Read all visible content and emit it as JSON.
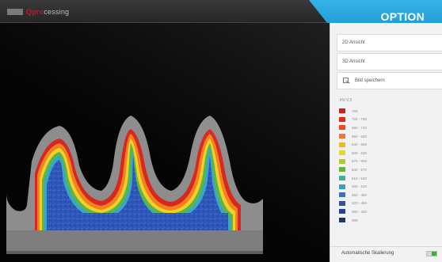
{
  "app": {
    "logo_prefix": "Q",
    "logo_brand": "pro",
    "logo_suffix": "cessing"
  },
  "badge": {
    "label": "OPTION"
  },
  "panel": {
    "view_2d": "2D Ansicht",
    "view_3d": "3D Ansicht",
    "edit_label": "Bild speichern",
    "legend_title": "HV 0.5",
    "legend": [
      {
        "label": "750",
        "color": "#d71d1d"
      },
      {
        "label": "720 - 750",
        "color": "#e02a22"
      },
      {
        "label": "690 - 720",
        "color": "#ea4b25"
      },
      {
        "label": "660 - 690",
        "color": "#f07a24"
      },
      {
        "label": "630 - 660",
        "color": "#f4b624"
      },
      {
        "label": "600 - 630",
        "color": "#e8d525"
      },
      {
        "label": "570 - 600",
        "color": "#a6cf2c"
      },
      {
        "label": "540 - 570",
        "color": "#62b834"
      },
      {
        "label": "510 - 540",
        "color": "#43b08a"
      },
      {
        "label": "480 - 510",
        "color": "#3d9ec7"
      },
      {
        "label": "450 - 480",
        "color": "#3a70c4"
      },
      {
        "label": "420 - 450",
        "color": "#2f51a8"
      },
      {
        "label": "390 - 420",
        "color": "#29408f"
      },
      {
        "label": "390",
        "color": "#233276"
      }
    ],
    "auto_scale_label": "Automatische Skalierung",
    "auto_scale_on": true
  }
}
